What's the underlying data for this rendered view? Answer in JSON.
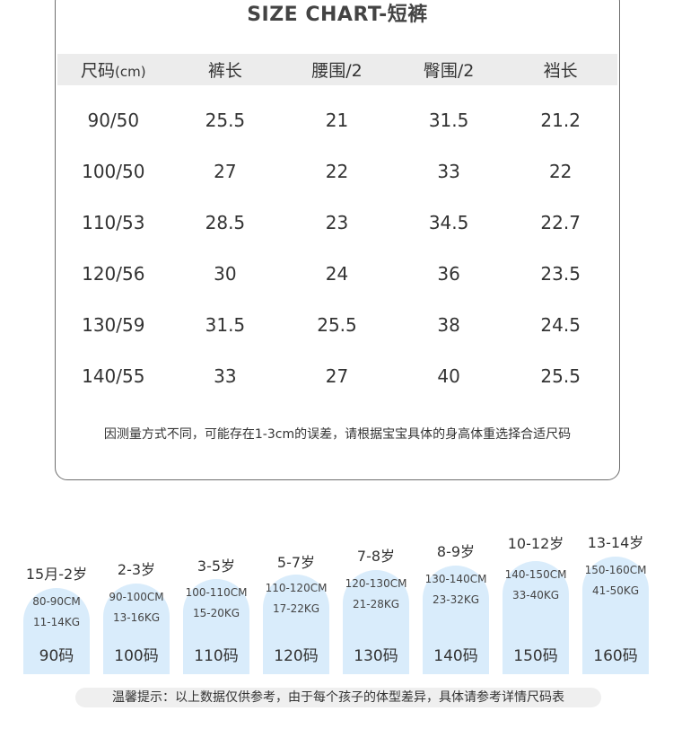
{
  "chart": {
    "title": "SIZE CHART-短裤",
    "headers": [
      "尺码",
      "裤长",
      "腰围/2",
      "臀围/2",
      "裆长"
    ],
    "header_unit": "(cm)",
    "rows": [
      [
        "90/50",
        "25.5",
        "21",
        "31.5",
        "21.2"
      ],
      [
        "100/50",
        "27",
        "22",
        "33",
        "22"
      ],
      [
        "110/53",
        "28.5",
        "23",
        "34.5",
        "22.7"
      ],
      [
        "120/56",
        "30",
        "24",
        "36",
        "23.5"
      ],
      [
        "130/59",
        "31.5",
        "25.5",
        "38",
        "24.5"
      ],
      [
        "140/55",
        "33",
        "27",
        "40",
        "25.5"
      ]
    ],
    "note": "因测量方式不同，可能存在1-3cm的误差，请根据宝宝具体的身高体重选择合适尺码"
  },
  "sizes": [
    {
      "age": "15月-2岁",
      "height": "80-90CM",
      "weight": "11-14KG",
      "code": "90码"
    },
    {
      "age": "2-3岁",
      "height": "90-100CM",
      "weight": "13-16KG",
      "code": "100码"
    },
    {
      "age": "3-5岁",
      "height": "100-110CM",
      "weight": "15-20KG",
      "code": "110码"
    },
    {
      "age": "5-7岁",
      "height": "110-120CM",
      "weight": "17-22KG",
      "code": "120码"
    },
    {
      "age": "7-8岁",
      "height": "120-130CM",
      "weight": "21-28KG",
      "code": "130码"
    },
    {
      "age": "8-9岁",
      "height": "130-140CM",
      "weight": "23-32KG",
      "code": "140码"
    },
    {
      "age": "10-12岁",
      "height": "140-150CM",
      "weight": "33-40KG",
      "code": "150码"
    },
    {
      "age": "13-14岁",
      "height": "150-160CM",
      "weight": "41-50KG",
      "code": "160码"
    }
  ],
  "tip": "温馨提示：以上数据仅供参考，由于每个孩子的体型差异，具体请参考详情尺码表",
  "colors": {
    "chip": "#d9ecfb",
    "header_bar": "#ececec",
    "card_border": "#6f6f6f"
  }
}
